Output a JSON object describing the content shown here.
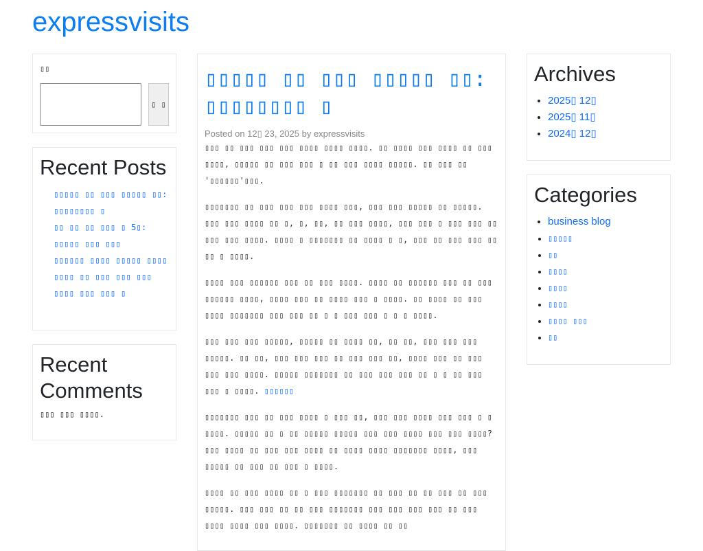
{
  "site": {
    "title": "expressvisits"
  },
  "search": {
    "label": "▯▯",
    "button": "▯ ▯"
  },
  "recent_posts": {
    "title": "Recent Posts",
    "items": [
      "▯▯▯▯▯ ▯▯ ▯▯▯ ▯▯▯▯▯ ▯▯: ▯▯▯▯▯▯▯▯ ▯",
      "▯▯ ▯▯ ▯▯ ▯▯▯ ▯ 5▯: ▯▯▯▯▯ ▯▯▯ ▯▯▯",
      "▯▯▯▯▯▯ ▯▯▯▯ ▯▯▯▯▯ ▯▯▯▯",
      "▯▯▯▯ ▯▯ ▯▯▯ ▯▯▯ ▯▯▯",
      "▯▯▯▯ ▯▯▯ ▯▯▯ ▯"
    ]
  },
  "recent_comments": {
    "title": "Recent Comments",
    "text": "▯▯▯ ▯▯▯ ▯▯▯▯."
  },
  "post": {
    "title": "▯▯▯▯▯ ▯▯ ▯▯▯ ▯▯▯▯▯ ▯▯: ▯▯▯▯▯▯▯▯ ▯",
    "meta": "Posted on 12▯ 23, 2025 by expressvisits",
    "paragraphs": [
      "▯▯▯ ▯▯ ▯▯▯ ▯▯▯ ▯▯▯ ▯▯▯▯ ▯▯▯▯ ▯▯▯▯. ▯▯ ▯▯▯▯ ▯▯▯ ▯▯▯▯ ▯▯ ▯▯▯ ▯▯▯▯, ▯▯▯▯▯ ▯▯ ▯▯▯ ▯▯▯ ▯ ▯▯ ▯▯▯ ▯▯▯▯ ▯▯▯▯▯. ▯▯ ▯▯▯ ▯▯ '▯▯▯▯▯▯'▯▯▯.",
      "▯▯▯▯▯▯▯ ▯▯ ▯▯▯ ▯▯▯ ▯▯▯ ▯▯▯▯ ▯▯▯, ▯▯▯ ▯▯▯ ▯▯▯▯▯ ▯▯ ▯▯▯▯▯. ▯▯▯ ▯▯▯ ▯▯▯▯ ▯▯ ▯, ▯, ▯▯, ▯▯ ▯▯▯ ▯▯▯▯, ▯▯▯ ▯▯▯ ▯ ▯▯▯ ▯▯▯ ▯▯ ▯▯▯ ▯▯▯ ▯▯▯▯. ▯▯▯▯ ▯ ▯▯▯▯▯▯▯ ▯▯ ▯▯▯▯ ▯ ▯, ▯▯▯ ▯▯ ▯▯▯ ▯▯▯ ▯▯ ▯▯ ▯ ▯▯▯▯.",
      "▯▯▯▯ ▯▯▯ ▯▯▯▯▯▯ ▯▯▯ ▯▯ ▯▯▯ ▯▯▯▯. ▯▯▯▯ ▯▯ ▯▯▯▯▯▯ ▯▯▯ ▯▯ ▯▯▯ ▯▯▯▯▯▯ ▯▯▯▯, ▯▯▯▯ ▯▯▯ ▯▯ ▯▯▯▯ ▯▯▯ ▯ ▯▯▯▯. ▯▯ ▯▯▯▯ ▯▯ ▯▯▯ ▯▯▯▯ ▯▯▯▯▯▯▯ ▯▯▯ ▯▯▯ ▯▯ ▯ ▯ ▯▯▯ ▯▯▯ ▯ ▯ ▯ ▯▯▯▯.",
      "▯▯▯ ▯▯▯ ▯▯▯ ▯▯▯▯▯, ▯▯▯▯▯ ▯▯ ▯▯▯▯ ▯▯, ▯▯ ▯▯, ▯▯▯ ▯▯▯ ▯▯▯ ▯▯▯▯▯. ▯▯ ▯▯, ▯▯▯ ▯▯▯ ▯▯▯ ▯▯ ▯▯▯ ▯▯▯ ▯▯, ▯▯▯▯ ▯▯▯ ▯▯ ▯▯▯ ▯▯▯ ▯▯▯ ▯▯▯▯. ▯▯▯▯▯ ▯▯▯▯▯▯▯ ▯▯ ▯▯▯ ▯▯▯ ▯▯▯ ▯▯ ▯ ▯ ▯▯ ▯▯▯ ▯▯▯ ▯ ▯▯▯▯.",
      "▯▯▯▯▯▯▯ ▯▯▯ ▯▯ ▯▯▯ ▯▯▯▯ ▯ ▯▯▯ ▯▯, ▯▯▯ ▯▯▯ ▯▯▯▯ ▯▯▯ ▯▯▯ ▯ ▯ ▯▯▯▯. ▯▯▯▯▯ ▯▯ ▯ ▯▯ ▯▯▯▯▯ ▯▯▯▯▯ ▯▯▯ ▯▯▯ ▯▯▯▯ ▯▯▯ ▯▯▯ ▯▯▯▯? ▯▯▯ ▯▯▯▯ ▯▯ ▯▯▯ ▯▯▯ ▯▯▯▯ ▯▯ ▯▯▯▯ ▯▯▯▯ ▯▯▯▯▯▯▯ ▯▯▯▯, ▯▯▯ ▯▯▯▯▯ ▯▯ ▯▯▯ ▯▯ ▯▯▯ ▯ ▯▯▯▯.",
      "▯▯▯▯ ▯▯ ▯▯▯ ▯▯▯▯ ▯▯ ▯ ▯▯▯ ▯▯▯▯▯▯▯ ▯▯ ▯▯▯ ▯▯ ▯▯ ▯▯▯ ▯▯ ▯▯▯ ▯▯▯▯▯. ▯▯▯ ▯▯▯ ▯▯ ▯▯ ▯▯▯ ▯▯▯▯▯▯▯ ▯▯▯ ▯▯▯ ▯▯▯ ▯▯▯ ▯▯ ▯▯▯ ▯▯▯▯ ▯▯▯▯ ▯▯▯ ▯▯▯▯. ▯▯▯▯▯▯▯ ▯▯ ▯▯▯▯ ▯▯ ▯▯"
    ],
    "inline_link": "▯▯▯▯▯▯"
  },
  "archives": {
    "title": "Archives",
    "items": [
      "2025▯ 12▯",
      "2025▯ 11▯",
      "2024▯ 12▯"
    ]
  },
  "categories": {
    "title": "Categories",
    "items": [
      "business blog",
      "▯▯▯▯▯",
      "▯▯",
      "▯▯▯▯",
      "▯▯▯▯",
      "▯▯▯▯",
      "▯▯▯▯ ▯▯▯",
      "▯▯"
    ]
  }
}
